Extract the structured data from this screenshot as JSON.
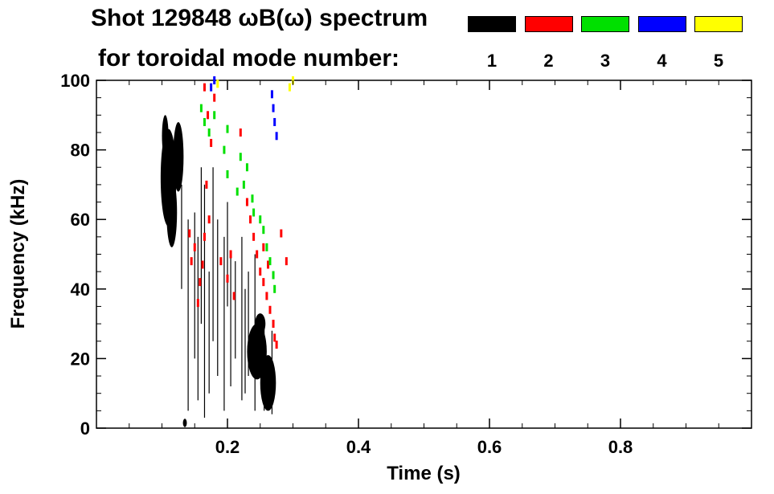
{
  "chart_data": {
    "type": "scatter",
    "title_line1": "Shot 129848 ωB(ω) spectrum",
    "title_line2": "for toroidal mode number:",
    "xlabel": "Time (s)",
    "ylabel": "Frequency (kHz)",
    "xlim": [
      0.0,
      1.0
    ],
    "ylim": [
      0,
      100
    ],
    "xticks": [
      0.2,
      0.4,
      0.6,
      0.8
    ],
    "xtick_labels": [
      "0.2",
      "0.4",
      "0.6",
      "0.8"
    ],
    "yticks": [
      0,
      20,
      40,
      60,
      80,
      100
    ],
    "ytick_labels": [
      "0",
      "20",
      "40",
      "60",
      "80",
      "100"
    ],
    "grid": false,
    "legend_placement": "top-right",
    "series": [
      {
        "name": "1",
        "color": "#000000",
        "blobs": [
          {
            "t": 0.11,
            "f": 72,
            "dt": 0.012,
            "df": 14
          },
          {
            "t": 0.115,
            "f": 62,
            "dt": 0.008,
            "df": 10
          },
          {
            "t": 0.105,
            "f": 84,
            "dt": 0.005,
            "df": 6
          },
          {
            "t": 0.125,
            "f": 78,
            "dt": 0.008,
            "df": 10
          },
          {
            "t": 0.245,
            "f": 22,
            "dt": 0.015,
            "df": 8
          },
          {
            "t": 0.262,
            "f": 13,
            "dt": 0.012,
            "df": 8
          },
          {
            "t": 0.25,
            "f": 30,
            "dt": 0.008,
            "df": 3
          },
          {
            "t": 0.135,
            "f": 1.5,
            "dt": 0.003,
            "df": 1.2
          }
        ],
        "streaks": [
          [
            0.14,
            5,
            60
          ],
          [
            0.155,
            8,
            55
          ],
          [
            0.165,
            3,
            70
          ],
          [
            0.172,
            10,
            45
          ],
          [
            0.185,
            15,
            60
          ],
          [
            0.195,
            5,
            55
          ],
          [
            0.205,
            12,
            50
          ],
          [
            0.212,
            20,
            48
          ],
          [
            0.222,
            8,
            55
          ],
          [
            0.232,
            15,
            45
          ],
          [
            0.242,
            5,
            50
          ],
          [
            0.15,
            20,
            62
          ],
          [
            0.178,
            25,
            75
          ],
          [
            0.227,
            10,
            40
          ],
          [
            0.256,
            5,
            30
          ],
          [
            0.268,
            4,
            28
          ],
          [
            0.13,
            40,
            70
          ],
          [
            0.16,
            30,
            75
          ],
          [
            0.2,
            35,
            65
          ]
        ]
      },
      {
        "name": "2",
        "color": "#ff0000",
        "points": [
          [
            0.155,
            36
          ],
          [
            0.158,
            42
          ],
          [
            0.162,
            47
          ],
          [
            0.15,
            52
          ],
          [
            0.145,
            48
          ],
          [
            0.142,
            56
          ],
          [
            0.165,
            55
          ],
          [
            0.17,
            90
          ],
          [
            0.175,
            82
          ],
          [
            0.168,
            70
          ],
          [
            0.19,
            48
          ],
          [
            0.2,
            43
          ],
          [
            0.205,
            50
          ],
          [
            0.21,
            38
          ],
          [
            0.235,
            60
          ],
          [
            0.24,
            55
          ],
          [
            0.245,
            50
          ],
          [
            0.25,
            45
          ],
          [
            0.255,
            42
          ],
          [
            0.26,
            38
          ],
          [
            0.265,
            34
          ],
          [
            0.27,
            30
          ],
          [
            0.272,
            26
          ],
          [
            0.275,
            24
          ],
          [
            0.282,
            56
          ],
          [
            0.29,
            48
          ],
          [
            0.255,
            52
          ],
          [
            0.262,
            47
          ],
          [
            0.22,
            85
          ],
          [
            0.18,
            95
          ],
          [
            0.165,
            98
          ],
          [
            0.23,
            65
          ],
          [
            0.172,
            60
          ]
        ]
      },
      {
        "name": "3",
        "color": "#00e000",
        "points": [
          [
            0.16,
            92
          ],
          [
            0.165,
            88
          ],
          [
            0.172,
            85
          ],
          [
            0.18,
            90
          ],
          [
            0.195,
            80
          ],
          [
            0.2,
            73
          ],
          [
            0.215,
            68
          ],
          [
            0.225,
            70
          ],
          [
            0.23,
            75
          ],
          [
            0.24,
            62
          ],
          [
            0.255,
            57
          ],
          [
            0.26,
            52
          ],
          [
            0.265,
            48
          ],
          [
            0.27,
            44
          ],
          [
            0.272,
            40
          ],
          [
            0.238,
            66
          ],
          [
            0.25,
            60
          ],
          [
            0.2,
            86
          ],
          [
            0.22,
            78
          ]
        ]
      },
      {
        "name": "4",
        "color": "#0000ff",
        "points": [
          [
            0.175,
            98
          ],
          [
            0.18,
            100
          ],
          [
            0.27,
            92
          ],
          [
            0.272,
            88
          ],
          [
            0.275,
            84
          ],
          [
            0.268,
            96
          ]
        ]
      },
      {
        "name": "5",
        "color": "#ffff00",
        "points": [
          [
            0.185,
            99
          ],
          [
            0.295,
            98
          ],
          [
            0.3,
            100
          ]
        ]
      }
    ]
  }
}
